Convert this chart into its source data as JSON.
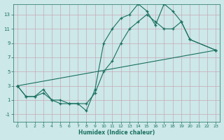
{
  "xlabel": "Humidex (Indice chaleur)",
  "bg_color": "#cce8e8",
  "grid_color": "#c8a8b8",
  "line_color": "#1a7060",
  "xlim": [
    -0.5,
    23.5
  ],
  "ylim": [
    -2.0,
    14.5
  ],
  "xticks": [
    0,
    1,
    2,
    3,
    4,
    5,
    6,
    7,
    8,
    9,
    10,
    11,
    12,
    13,
    14,
    15,
    16,
    17,
    18,
    19,
    20,
    21,
    22,
    23
  ],
  "yticks": [
    -1,
    1,
    3,
    5,
    7,
    9,
    11,
    13
  ],
  "series": [
    {
      "x": [
        0,
        1,
        2,
        3,
        4,
        5,
        6,
        7,
        8,
        9,
        10,
        11,
        12,
        13,
        14,
        15,
        16,
        17,
        18,
        19,
        20,
        23
      ],
      "y": [
        3,
        1.5,
        1.5,
        2.5,
        1,
        1,
        0.5,
        0.5,
        -0.5,
        2.5,
        9,
        11,
        12.5,
        13,
        14.5,
        13.5,
        11.5,
        14.5,
        13.5,
        12,
        9.5,
        8
      ]
    },
    {
      "x": [
        0,
        1,
        2,
        3,
        4,
        5,
        6,
        7,
        8,
        9,
        10,
        11,
        12,
        13,
        14,
        15,
        16,
        17,
        18,
        19,
        20,
        23
      ],
      "y": [
        3,
        1.5,
        1.5,
        2,
        1,
        0.5,
        0.5,
        0.5,
        0.5,
        2,
        5,
        6.5,
        9,
        11,
        12,
        13,
        12,
        11,
        11,
        12,
        9.5,
        8
      ]
    },
    {
      "x": [
        0,
        23
      ],
      "y": [
        3,
        8
      ]
    }
  ]
}
